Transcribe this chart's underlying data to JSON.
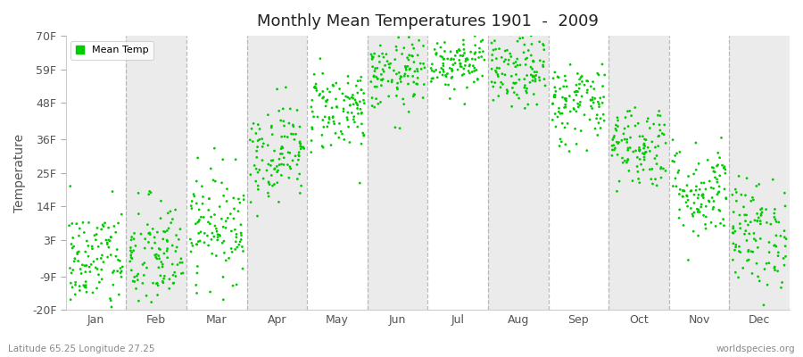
{
  "title": "Monthly Mean Temperatures 1901  -  2009",
  "ylabel": "Temperature",
  "months": [
    "Jan",
    "Feb",
    "Mar",
    "Apr",
    "May",
    "Jun",
    "Jul",
    "Aug",
    "Sep",
    "Oct",
    "Nov",
    "Dec"
  ],
  "yticks": [
    -20,
    -9,
    3,
    14,
    25,
    36,
    48,
    59,
    70
  ],
  "ytick_labels": [
    "-20F",
    "-9F",
    "3F",
    "14F",
    "25F",
    "36F",
    "48F",
    "59F",
    "70F"
  ],
  "ylim": [
    -20,
    70
  ],
  "dot_color": "#00CC00",
  "legend_label": "Mean Temp",
  "footer_left": "Latitude 65.25 Longitude 27.25",
  "footer_right": "worldspecies.org",
  "background_color": "#ffffff",
  "band_white": "#ffffff",
  "band_gray": "#ebebeb",
  "dot_size": 4,
  "monthly_mean_temps_F": [
    -4,
    -3,
    8,
    32,
    46,
    57,
    62,
    58,
    48,
    34,
    19,
    5
  ],
  "monthly_std_F": [
    9,
    10,
    9,
    8,
    7,
    6,
    5,
    6,
    7,
    7,
    8,
    9
  ],
  "num_years": 109
}
